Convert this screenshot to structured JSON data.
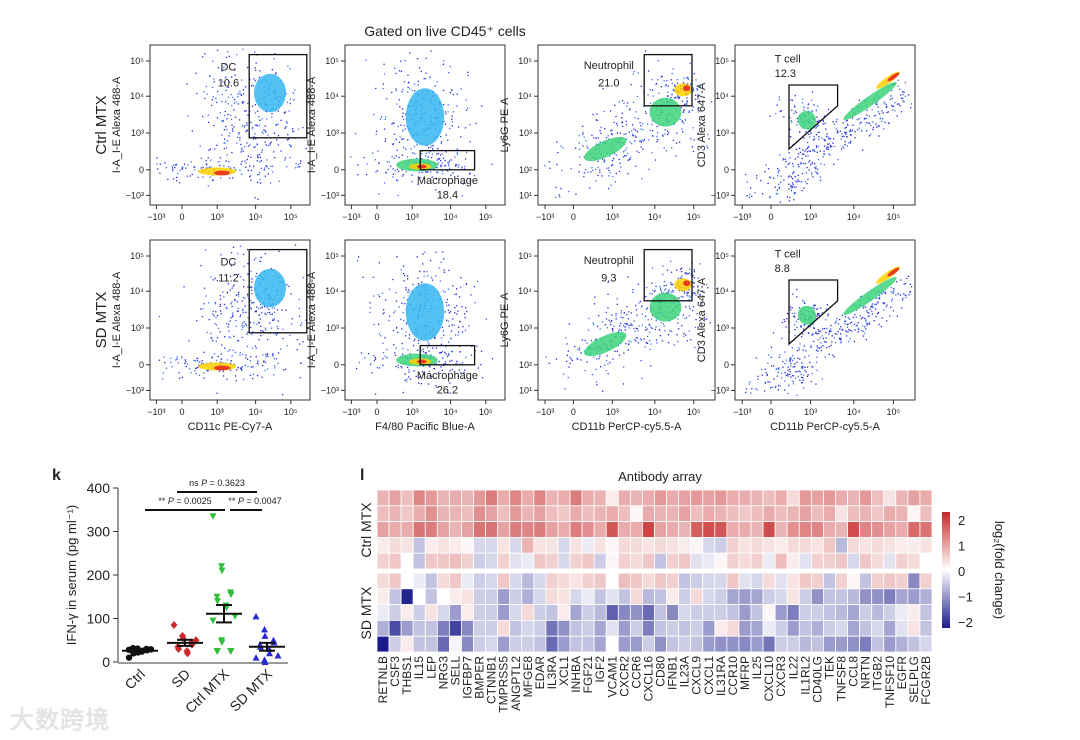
{
  "figure_title": "Gated on live CD45⁺ cells",
  "flow": {
    "rows": [
      {
        "label": "Ctrl MTX",
        "gates": [
          {
            "name": "DC",
            "pct": "10.6"
          },
          {
            "name": "Macrophage",
            "pct": "18.4"
          },
          {
            "name": "Neutrophil",
            "pct": "21.0"
          },
          {
            "name": "T cell",
            "pct": "12.3"
          }
        ]
      },
      {
        "label": "SD MTX",
        "gates": [
          {
            "name": "DC",
            "pct": "11.2"
          },
          {
            "name": "Macrophage",
            "pct": "26.2"
          },
          {
            "name": "Neutrophil",
            "pct": "9.3"
          },
          {
            "name": "T cell",
            "pct": "8.8"
          }
        ]
      }
    ],
    "y_axis_labels": [
      "I-A_I-E Alexa 488-A",
      "I-A_I-E Alexa 488-A",
      "Ly6G PE-A",
      "CD3 Alexa 647-A"
    ],
    "x_axis_labels": [
      "CD11c PE-Cy7-A",
      "F4/80 Pacific Blue-A",
      "CD11b PerCP-cy5.5-A",
      "CD11b PerCP-cy5.5-A"
    ],
    "x_ticks": [
      "−10³",
      "0",
      "10³",
      "10⁴",
      "10⁵"
    ],
    "y_ticks_biex": [
      "10⁵",
      "10⁴",
      "10³",
      "0",
      "−10³"
    ],
    "y_ticks_log": [
      "10⁵",
      "10⁴",
      "10³",
      "10²",
      "10¹"
    ]
  },
  "chart_data": [
    {
      "type": "scatter",
      "panel_letter": "k",
      "ylabel": "IFN-γ in serum (pg ml⁻¹)",
      "ylim": [
        0,
        400
      ],
      "yticks": [
        0,
        100,
        200,
        300,
        400
      ],
      "categories": [
        "Ctrl",
        "SD",
        "Ctrl MTX",
        "SD MTX"
      ],
      "colors": [
        "#111111",
        "#cc2a2a",
        "#2fbf3a",
        "#2a2ad0"
      ],
      "markers": [
        "circle",
        "diamond",
        "triangle-down",
        "triangle-up"
      ],
      "series": [
        {
          "name": "Ctrl",
          "values": [
            28,
            25,
            22,
            30,
            27,
            32,
            20,
            24,
            26,
            29,
            10,
            31,
            23
          ],
          "mean": 26,
          "sem": 2
        },
        {
          "name": "SD",
          "values": [
            85,
            60,
            55,
            45,
            40,
            35,
            30,
            25,
            20,
            50
          ],
          "mean": 44,
          "sem": 7
        },
        {
          "name": "Ctrl MTX",
          "values": [
            335,
            220,
            210,
            160,
            155,
            150,
            140,
            130,
            125,
            105,
            95,
            50,
            45,
            25,
            25,
            25,
            25
          ],
          "mean": 111,
          "sem": 20
        },
        {
          "name": "SD MTX",
          "values": [
            105,
            75,
            60,
            50,
            45,
            40,
            35,
            30,
            20,
            15,
            10,
            5,
            0
          ],
          "mean": 35,
          "sem": 9
        }
      ],
      "significance": [
        {
          "pair": [
            "SD",
            "SD MTX"
          ],
          "stars": "ns",
          "p_label": "P",
          "p_value": "= 0.3623"
        },
        {
          "pair": [
            "Ctrl",
            "Ctrl MTX"
          ],
          "stars": "**",
          "p_label": "P",
          "p_value": "= 0.0025"
        },
        {
          "pair": [
            "Ctrl MTX",
            "SD MTX"
          ],
          "stars": "**",
          "p_label": "P",
          "p_value": "= 0.0047"
        }
      ]
    },
    {
      "type": "heatmap",
      "panel_letter": "l",
      "title": "Antibody array",
      "row_groups": [
        "Ctrl MTX",
        "SD MTX"
      ],
      "colorbar_label": "log₂(fold change)",
      "colorbar_ticks": [
        "2",
        "1",
        "0",
        "−1",
        "−2"
      ],
      "vrange": [
        -2.3,
        2.3
      ],
      "colors": {
        "high": "#c62828",
        "mid": "#ffffff",
        "low": "#1a1a8c"
      },
      "columns": [
        "RETNLB",
        "CSF3",
        "THBS1",
        "IL15",
        "LEP",
        "NRG3",
        "SELL",
        "IGFBP7",
        "BMPER",
        "CTNNB1",
        "TMPRSS5",
        "ANGPTL2",
        "MFGE8",
        "EDAR",
        "IL3RA",
        "XCL1",
        "INHBA",
        "FGF21",
        "IGF2",
        "VCAM1",
        "CXCR2",
        "CCR6",
        "CXCL16",
        "CD80",
        "IFNB1",
        "IL23A",
        "CXCL9",
        "CXCL1",
        "IL31RA",
        "CCR10",
        "MFRP",
        "IL25",
        "CXCL10",
        "CXCR3",
        "IL22",
        "IL1RL2",
        "CD40LG",
        "TEK",
        "TNFSF8",
        "CCL8",
        "NRTN",
        "ITGB2",
        "TNFSF10",
        "EGFR",
        "SELPLG",
        "FCGR2B"
      ],
      "rows": [
        [
          0.8,
          1.0,
          0.7,
          1.3,
          1.1,
          0.8,
          0.9,
          0.8,
          1.1,
          1.4,
          0.9,
          1.3,
          0.9,
          1.3,
          0.8,
          0.9,
          1.4,
          0.9,
          0.8,
          0.2,
          0.9,
          0.8,
          0.9,
          1.1,
          0.9,
          1.0,
          1.1,
          1.0,
          1.1,
          0.9,
          0.9,
          0.8,
          0.7,
          0.9,
          0.4,
          1.1,
          1.0,
          1.1,
          0.9,
          0.8,
          1.1,
          0.7,
          0.3,
          0.8,
          1.0,
          0.9
        ],
        [
          0.7,
          0.8,
          0.6,
          0.9,
          1.2,
          0.8,
          0.8,
          0.7,
          1.2,
          1.0,
          0.7,
          1.1,
          0.8,
          1.0,
          0.7,
          0.6,
          0.9,
          0.7,
          0.8,
          0.9,
          0.7,
          0.1,
          0.9,
          0.8,
          0.8,
          1.0,
          0.7,
          0.9,
          0.8,
          0.7,
          0.6,
          0.7,
          0.9,
          0.7,
          0.8,
          1.0,
          0.7,
          0.9,
          0.3,
          0.7,
          0.8,
          0.6,
          0.9,
          0.8,
          0.1,
          0.7
        ],
        [
          1.0,
          0.9,
          0.9,
          1.5,
          1.4,
          1.0,
          0.8,
          1.0,
          1.5,
          1.5,
          1.0,
          1.4,
          1.3,
          1.4,
          1.0,
          0.9,
          1.4,
          1.2,
          0.9,
          1.8,
          0.9,
          0.9,
          2.0,
          1.0,
          0.9,
          0.8,
          1.7,
          1.9,
          1.8,
          0.9,
          0.9,
          0.8,
          1.9,
          0.8,
          1.2,
          1.3,
          1.3,
          0.9,
          0.8,
          1.9,
          1.3,
          1.2,
          1.0,
          0.9,
          1.6,
          1.5
        ],
        [
          0.2,
          0.4,
          0.3,
          -0.6,
          0.2,
          0.3,
          0.2,
          0.1,
          -0.4,
          -0.4,
          0.3,
          -0.4,
          0.8,
          0.3,
          0.3,
          -0.4,
          0.3,
          -0.2,
          0.3,
          0.1,
          0.4,
          0.4,
          0.3,
          0.4,
          0.3,
          0.2,
          0.1,
          -0.4,
          -0.5,
          0.5,
          0.3,
          0.4,
          0.3,
          0.2,
          0.4,
          0.4,
          0.3,
          0.6,
          -0.7,
          0.4,
          0.3,
          0.4,
          0.3,
          0.2,
          0.2,
          0.3
        ],
        [
          0.5,
          0.6,
          0.0,
          -0.6,
          0.6,
          0.6,
          0.7,
          0.5,
          -0.5,
          -0.4,
          0.5,
          -0.3,
          -0.2,
          0.6,
          0.5,
          -0.4,
          0.5,
          0.6,
          -0.5,
          0.1,
          0.5,
          0.4,
          0.6,
          -0.6,
          0.5,
          0.6,
          -0.3,
          -0.2,
          0.1,
          0.5,
          0.4,
          0.5,
          -0.2,
          0.7,
          0.2,
          -0.3,
          0.5,
          0.5,
          0.6,
          -0.4,
          0.6,
          0.4,
          -0.3,
          0.5,
          0.4,
          0.0
        ],
        [
          0.4,
          0.6,
          0.0,
          -0.2,
          -0.6,
          0.4,
          0.6,
          -0.2,
          -0.5,
          -0.4,
          0.6,
          -0.4,
          -0.7,
          -0.4,
          0.5,
          0.4,
          0.3,
          0.5,
          0.6,
          0.0,
          0.7,
          0.6,
          0.4,
          0.6,
          0.5,
          -0.6,
          -0.5,
          -0.4,
          -0.4,
          0.6,
          -0.3,
          -0.4,
          0.4,
          -0.3,
          0.3,
          0.6,
          0.5,
          -0.6,
          0.5,
          0.1,
          -0.6,
          0.5,
          0.6,
          0.5,
          -1.2,
          0.5
        ],
        [
          0.2,
          -0.6,
          -2.2,
          0.0,
          -0.6,
          0.0,
          0.2,
          0.3,
          -0.5,
          -0.5,
          -1.0,
          -0.5,
          -0.8,
          -0.4,
          0.4,
          0.3,
          -0.4,
          -0.2,
          -0.6,
          -0.3,
          -0.6,
          0.4,
          -0.7,
          -0.6,
          0.2,
          -0.5,
          0.4,
          -0.4,
          -0.5,
          -0.9,
          -1.0,
          -0.9,
          -0.5,
          -0.4,
          0.3,
          -0.5,
          -1.1,
          -0.6,
          -0.6,
          -0.7,
          -1.1,
          -1.1,
          -1.3,
          -0.9,
          -1.0,
          -0.8
        ],
        [
          -0.2,
          -0.5,
          0.2,
          -0.5,
          0.3,
          -0.4,
          -1.0,
          0.2,
          -0.5,
          -0.5,
          -1.0,
          -0.4,
          0.4,
          -0.5,
          -0.6,
          0.2,
          -0.9,
          -0.5,
          -0.7,
          -1.6,
          -1.2,
          -1.1,
          -1.5,
          -0.6,
          -1.2,
          -0.4,
          -0.5,
          -0.5,
          -0.5,
          -0.6,
          -1.0,
          -0.6,
          0.1,
          -1.0,
          -1.3,
          -0.5,
          -0.5,
          -0.6,
          -0.7,
          -0.9,
          -0.5,
          -0.7,
          -0.5,
          -0.2,
          0.2,
          -0.6
        ],
        [
          -0.8,
          -1.8,
          -1.0,
          -0.6,
          -0.6,
          -1.3,
          -1.9,
          -1.2,
          -0.5,
          -0.5,
          0.4,
          -0.6,
          -0.4,
          -0.5,
          -1.4,
          -1.1,
          -0.6,
          -0.5,
          -0.9,
          -0.3,
          -1.0,
          -0.5,
          -1.3,
          -0.6,
          -0.5,
          -0.6,
          -0.5,
          -1.0,
          0.2,
          0.4,
          -1.0,
          -0.9,
          -0.2,
          -0.5,
          -1.0,
          -0.6,
          -0.8,
          -0.5,
          -0.4,
          -0.9,
          -0.6,
          -0.4,
          -0.9,
          -0.3,
          0.3,
          -0.6
        ],
        [
          -2.3,
          -0.5,
          0.2,
          -0.6,
          -0.6,
          -1.5,
          -0.1,
          -1.2,
          -0.5,
          -0.4,
          -1.0,
          -0.5,
          -0.5,
          -0.6,
          -1.5,
          -1.0,
          -0.6,
          -0.6,
          -0.9,
          0.0,
          -1.0,
          -1.0,
          -0.5,
          -1.1,
          -0.6,
          -0.5,
          -0.6,
          -1.0,
          -1.1,
          -1.1,
          -1.2,
          -1.0,
          -1.4,
          -0.5,
          -0.5,
          -0.7,
          -0.6,
          -1.0,
          -1.0,
          -1.1,
          -1.3,
          -0.6,
          -1.0,
          -0.8,
          -0.6,
          -0.4
        ]
      ]
    }
  ],
  "watermark": "大数跨境"
}
